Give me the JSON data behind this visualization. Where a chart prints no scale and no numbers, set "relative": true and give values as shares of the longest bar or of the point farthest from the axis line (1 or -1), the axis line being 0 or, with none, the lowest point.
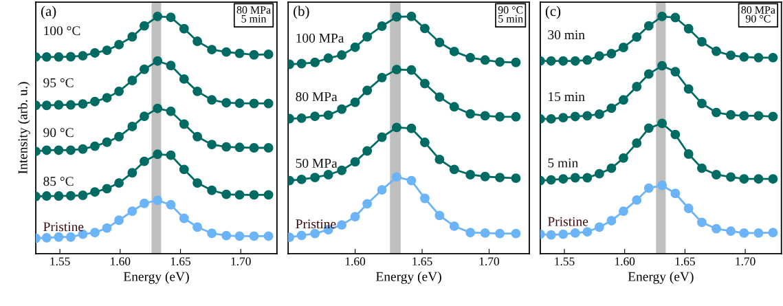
{
  "chart_data": [
    {
      "type": "line",
      "relative": true,
      "xlabel": "Energy (eV)",
      "ylabel": "Intensity (arb. u.)",
      "xlim": [
        1.53,
        1.73
      ],
      "xticks": [
        {
          "value": 1.55,
          "label": "1.55"
        },
        {
          "value": 1.6,
          "label": "1.60"
        },
        {
          "value": 1.65,
          "label": "1.65"
        },
        {
          "value": 1.7,
          "label": "1.70"
        }
      ],
      "tick_labels": "x",
      "marker": "circle",
      "line_style": "solid",
      "grid": false,
      "x": [
        1.53,
        1.539,
        1.549,
        1.559,
        1.569,
        1.579,
        1.589,
        1.599,
        1.61,
        1.62,
        1.631,
        1.642,
        1.653,
        1.664,
        1.676,
        1.688,
        1.699,
        1.711,
        1.723
      ],
      "annotations": [
        "(a)",
        "80 MPa\n5 min"
      ],
      "bands": [
        {
          "axis": "x",
          "from": 1.626,
          "to": 1.634,
          "color": "#bfbfbf"
        }
      ],
      "series": [
        {
          "name": "Pristine",
          "color": "#6cb4f8",
          "values": [
            0.065,
            0.067,
            0.07,
            0.07,
            0.082,
            0.089,
            0.108,
            0.141,
            0.179,
            0.212,
            0.225,
            0.206,
            0.149,
            0.112,
            0.086,
            0.076,
            0.074,
            0.074,
            0.074
          ]
        },
        {
          "name": "85 °C",
          "color": "#006b63",
          "values": [
            0.241,
            0.243,
            0.243,
            0.244,
            0.246,
            0.26,
            0.274,
            0.298,
            0.341,
            0.389,
            0.419,
            0.415,
            0.355,
            0.298,
            0.267,
            0.25,
            0.248,
            0.248,
            0.248
          ]
        },
        {
          "name": "90 °C",
          "color": "#006b63",
          "values": [
            0.431,
            0.436,
            0.436,
            0.436,
            0.441,
            0.453,
            0.47,
            0.493,
            0.536,
            0.579,
            0.612,
            0.6,
            0.546,
            0.493,
            0.46,
            0.45,
            0.448,
            0.446,
            0.446
          ]
        },
        {
          "name": "95 °C",
          "color": "#006b63",
          "values": [
            0.625,
            0.625,
            0.627,
            0.627,
            0.631,
            0.641,
            0.657,
            0.684,
            0.73,
            0.777,
            0.812,
            0.793,
            0.736,
            0.684,
            0.648,
            0.636,
            0.634,
            0.633,
            0.633
          ]
        },
        {
          "name": "100 °C",
          "color": "#006b63",
          "values": [
            0.829,
            0.829,
            0.829,
            0.83,
            0.834,
            0.846,
            0.857,
            0.881,
            0.914,
            0.96,
            1.0,
            0.996,
            0.948,
            0.895,
            0.86,
            0.85,
            0.844,
            0.838,
            0.84
          ]
        }
      ]
    },
    {
      "type": "line",
      "relative": true,
      "xlabel": "Energy (eV)",
      "xlim": [
        1.55,
        1.73
      ],
      "xticks": [
        {
          "value": 1.6,
          "label": "1.60"
        },
        {
          "value": 1.65,
          "label": "1.65"
        },
        {
          "value": 1.7,
          "label": "1.70"
        }
      ],
      "tick_labels": "x",
      "marker": "circle",
      "line_style": "solid",
      "grid": false,
      "x": [
        1.551,
        1.56,
        1.57,
        1.58,
        1.59,
        1.6,
        1.609,
        1.62,
        1.631,
        1.642,
        1.652,
        1.663,
        1.674,
        1.686,
        1.697,
        1.708,
        1.72
      ],
      "annotations": [
        "(b)",
        "90 °C\n5 min"
      ],
      "bands": [
        {
          "axis": "x",
          "from": 1.626,
          "to": 1.634,
          "color": "#bfbfbf"
        }
      ],
      "series": [
        {
          "name": "Pristine",
          "color": "#6cb4f8",
          "values": [
            0.069,
            0.077,
            0.085,
            0.101,
            0.121,
            0.156,
            0.21,
            0.269,
            0.323,
            0.308,
            0.233,
            0.161,
            0.116,
            0.089,
            0.087,
            0.085,
            0.085
          ]
        },
        {
          "name": "50 MPa",
          "color": "#006b63",
          "values": [
            0.308,
            0.313,
            0.321,
            0.333,
            0.351,
            0.387,
            0.433,
            0.491,
            0.532,
            0.528,
            0.469,
            0.397,
            0.355,
            0.333,
            0.325,
            0.321,
            0.318
          ]
        },
        {
          "name": "80 MPa",
          "color": "#006b63",
          "values": [
            0.569,
            0.571,
            0.579,
            0.584,
            0.609,
            0.638,
            0.688,
            0.742,
            0.776,
            0.774,
            0.717,
            0.66,
            0.619,
            0.589,
            0.581,
            0.577,
            0.577
          ]
        },
        {
          "name": "100 MPa",
          "color": "#006b63",
          "values": [
            0.798,
            0.801,
            0.806,
            0.824,
            0.837,
            0.87,
            0.914,
            0.959,
            0.998,
            1.0,
            0.949,
            0.89,
            0.852,
            0.826,
            0.816,
            0.808,
            0.806
          ]
        }
      ]
    },
    {
      "type": "line",
      "relative": true,
      "xlabel": "Energy (eV)",
      "xlim": [
        1.53,
        1.73
      ],
      "xticks": [
        {
          "value": 1.55,
          "label": "1.55"
        },
        {
          "value": 1.6,
          "label": "1.60"
        },
        {
          "value": 1.65,
          "label": "1.65"
        },
        {
          "value": 1.7,
          "label": "1.70"
        }
      ],
      "tick_labels": "x",
      "marker": "circle",
      "line_style": "solid",
      "grid": false,
      "x": [
        1.53,
        1.539,
        1.549,
        1.559,
        1.569,
        1.579,
        1.589,
        1.599,
        1.61,
        1.62,
        1.631,
        1.642,
        1.653,
        1.664,
        1.676,
        1.688,
        1.699,
        1.711,
        1.723
      ],
      "annotations": [
        "(c)",
        "80 MPa\n90 °C"
      ],
      "bands": [
        {
          "axis": "x",
          "from": 1.626,
          "to": 1.634,
          "color": "#bfbfbf"
        }
      ],
      "series": [
        {
          "name": "Pristine",
          "color": "#6cb4f8",
          "values": [
            0.082,
            0.079,
            0.082,
            0.087,
            0.092,
            0.112,
            0.139,
            0.179,
            0.226,
            0.276,
            0.288,
            0.254,
            0.191,
            0.132,
            0.105,
            0.095,
            0.087,
            0.087,
            0.089
          ]
        },
        {
          "name": "5 min",
          "color": "#006b63",
          "values": [
            0.308,
            0.311,
            0.315,
            0.32,
            0.32,
            0.337,
            0.36,
            0.403,
            0.466,
            0.529,
            0.549,
            0.502,
            0.42,
            0.36,
            0.333,
            0.323,
            0.315,
            0.315,
            0.315
          ]
        },
        {
          "name": "15 min",
          "color": "#006b63",
          "values": [
            0.568,
            0.568,
            0.573,
            0.578,
            0.581,
            0.588,
            0.613,
            0.648,
            0.704,
            0.757,
            0.792,
            0.767,
            0.694,
            0.633,
            0.595,
            0.585,
            0.581,
            0.581,
            0.578
          ]
        },
        {
          "name": "30 min",
          "color": "#006b63",
          "values": [
            0.812,
            0.812,
            0.812,
            0.812,
            0.816,
            0.833,
            0.843,
            0.869,
            0.913,
            0.96,
            1.0,
            0.995,
            0.948,
            0.893,
            0.853,
            0.836,
            0.829,
            0.826,
            0.826
          ]
        }
      ]
    }
  ]
}
